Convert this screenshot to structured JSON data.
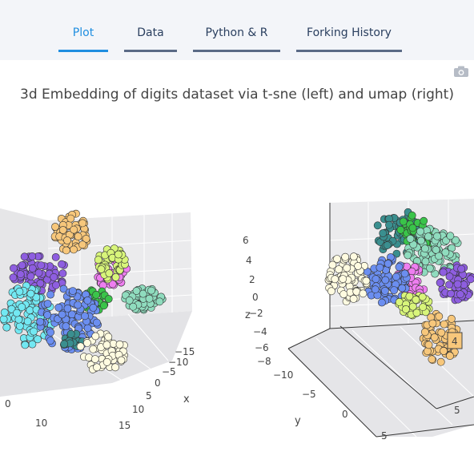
{
  "tabs": [
    {
      "label": "Plot",
      "active": true
    },
    {
      "label": "Data",
      "active": false
    },
    {
      "label": "Python & R",
      "active": false
    },
    {
      "label": "Forking History",
      "active": false
    }
  ],
  "toolbar": {
    "icon": "camera-icon"
  },
  "figure": {
    "title": "3d Embedding of digits dataset via t-sne (left) and  umap (right)"
  },
  "left_scene": {
    "x_axis": {
      "label": "x",
      "ticks": [
        "−15",
        "−10",
        "−5",
        "0",
        "5",
        "10",
        "15"
      ]
    },
    "y_axis": {
      "ticks": [
        "0",
        "10"
      ]
    }
  },
  "right_scene": {
    "z_axis": {
      "label": "z",
      "ticks": [
        "6",
        "4",
        "2",
        "0",
        "−2",
        "−4",
        "−6",
        "−8"
      ]
    },
    "y_axis": {
      "label": "y",
      "ticks": [
        "−10",
        "−5",
        "0",
        "5"
      ]
    },
    "x_axis": {
      "ticks": [
        "5"
      ]
    },
    "hover_label": "4"
  },
  "cluster_colors": [
    "#f7c77b",
    "#8e5ee0",
    "#ee7ef0",
    "#6b8ef0",
    "#72e8f2",
    "#8fdcbe",
    "#d8f57a",
    "#fffbe0",
    "#3a8f8f",
    "#3ac44a"
  ]
}
